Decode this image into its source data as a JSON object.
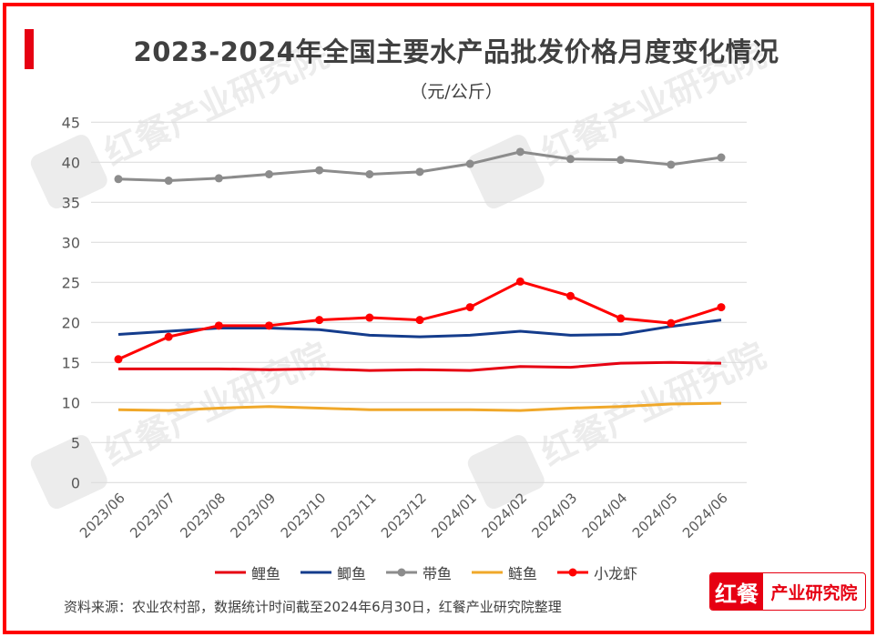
{
  "title": "2023-2024年全国主要水产品批发价格月度变化情况",
  "subtitle": "（元/公斤）",
  "source": "资料来源：农业农村部，数据统计时间截至2024年6月30日，红餐产业研究院整理",
  "logo": {
    "part1": "红餐",
    "part2": "产业研究院"
  },
  "watermark": "红餐产业研究院",
  "chart_data": {
    "type": "line",
    "title": "2023-2024年全国主要水产品批发价格月度变化情况",
    "ylabel": "（元/公斤）",
    "ylim": [
      0,
      45
    ],
    "yticks": [
      0,
      5,
      10,
      15,
      20,
      25,
      30,
      35,
      40,
      45
    ],
    "grid": true,
    "legend_position": "bottom",
    "categories": [
      "2023/06",
      "2023/07",
      "2023/08",
      "2023/09",
      "2023/10",
      "2023/11",
      "2023/12",
      "2024/01",
      "2024/02",
      "2024/03",
      "2024/04",
      "2024/05",
      "2024/06"
    ],
    "series": [
      {
        "name": "鲤鱼",
        "color": "#e60012",
        "markers": false,
        "values": [
          14.2,
          14.2,
          14.2,
          14.1,
          14.2,
          14.0,
          14.1,
          14.0,
          14.5,
          14.4,
          14.9,
          15.0,
          14.9
        ]
      },
      {
        "name": "鲫鱼",
        "color": "#143c8c",
        "markers": false,
        "values": [
          18.5,
          18.9,
          19.3,
          19.3,
          19.1,
          18.4,
          18.2,
          18.4,
          18.9,
          18.4,
          18.5,
          19.5,
          20.3
        ]
      },
      {
        "name": "带鱼",
        "color": "#8c8c8c",
        "markers": true,
        "values": [
          37.9,
          37.7,
          38.0,
          38.5,
          39.0,
          38.5,
          38.8,
          39.8,
          41.3,
          40.4,
          40.3,
          39.7,
          40.6
        ]
      },
      {
        "name": "鲢鱼",
        "color": "#f0a82a",
        "markers": false,
        "values": [
          9.1,
          9.0,
          9.3,
          9.5,
          9.3,
          9.1,
          9.1,
          9.1,
          9.0,
          9.3,
          9.5,
          9.8,
          9.9
        ]
      },
      {
        "name": "小龙虾",
        "color": "#ff0000",
        "markers": true,
        "values": [
          15.4,
          18.2,
          19.6,
          19.6,
          20.3,
          20.6,
          20.3,
          21.9,
          25.1,
          23.3,
          20.5,
          19.9,
          21.9
        ]
      }
    ]
  }
}
